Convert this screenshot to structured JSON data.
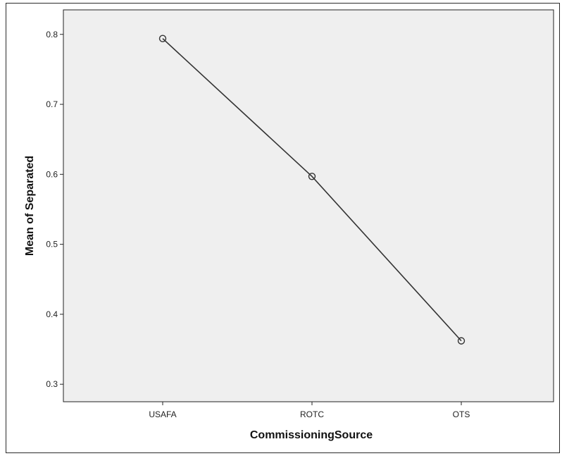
{
  "chart_data": {
    "type": "line",
    "categories": [
      "USAFA",
      "ROTC",
      "OTS"
    ],
    "series": [
      {
        "values": [
          0.794,
          0.597,
          0.362
        ]
      }
    ],
    "xlabel": "CommissioningSource",
    "ylabel": "Mean of Separated",
    "ylim": [
      0.275,
      0.835
    ],
    "yticks": [
      "0.3",
      "0.4",
      "0.5",
      "0.6",
      "0.7",
      "0.8"
    ],
    "grid": false,
    "legend": "none",
    "plot_background": "#efefef",
    "line_color": "#333333"
  }
}
